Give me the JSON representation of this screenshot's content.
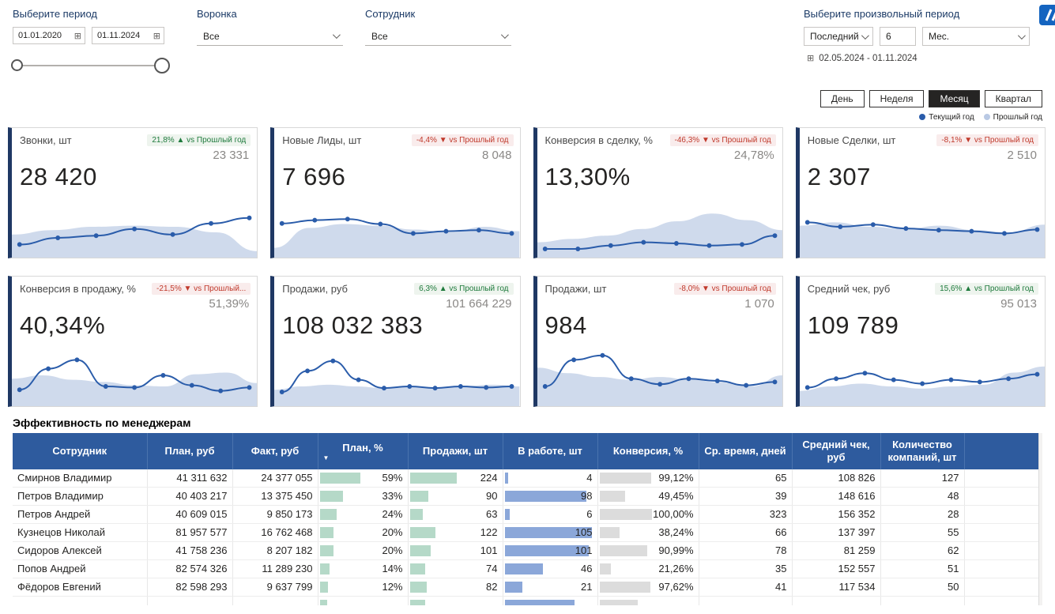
{
  "filters": {
    "period": {
      "label": "Выберите период",
      "start": "01.01.2020",
      "end": "01.11.2024"
    },
    "funnel": {
      "label": "Воронка",
      "value": "Все"
    },
    "employee": {
      "label": "Сотрудник",
      "value": "Все"
    },
    "custom_period": {
      "label": "Выберите произвольный период",
      "mode": "Последний",
      "count": "6",
      "unit": "Мес.",
      "range": "02.05.2024 - 01.11.2024"
    }
  },
  "granularity": {
    "buttons": [
      "День",
      "Неделя",
      "Месяц",
      "Квартал"
    ],
    "selected": "Месяц"
  },
  "legend": [
    {
      "label": "Текущий год",
      "color": "#2a5caa"
    },
    {
      "label": "Прошлый год",
      "color": "#b9c9e4"
    }
  ],
  "colors": {
    "current_line": "#2a5caa",
    "previous_area": "#cfdaec",
    "card_accent": "#1f3864",
    "table_header": "#2e5b9e",
    "bar_teal": "#b5d9c8",
    "bar_blue": "#8ba7d9",
    "bar_gray": "#dcdcdc",
    "badge_up": "#1e7a3c",
    "badge_down": "#c0392b"
  },
  "kpi_cards": [
    {
      "title": "Звонки, шт",
      "badge": "21,8% ▲ vs Прошлый год",
      "trend": "up",
      "previous": "23 331",
      "current": "28 420",
      "spark_current": [
        0.18,
        0.3,
        0.34,
        0.46,
        0.36,
        0.56,
        0.66
      ],
      "spark_previous": [
        0.36,
        0.44,
        0.5,
        0.52,
        0.5,
        0.4,
        0.06
      ]
    },
    {
      "title": "Новые Лиды, шт",
      "badge": "-4,4% ▼ vs Прошлый год",
      "trend": "down",
      "previous": "8 048",
      "current": "7 696",
      "spark_current": [
        0.56,
        0.62,
        0.64,
        0.55,
        0.38,
        0.42,
        0.44,
        0.38
      ],
      "spark_previous": [
        0.12,
        0.48,
        0.55,
        0.52,
        0.45,
        0.4,
        0.5,
        0.42
      ]
    },
    {
      "title": "Конверсия в сделку, %",
      "badge": "-46,3% ▼ vs Прошлый год",
      "trend": "down",
      "previous": "24,78%",
      "current": "13,30%",
      "spark_current": [
        0.1,
        0.1,
        0.16,
        0.22,
        0.2,
        0.16,
        0.18,
        0.34
      ],
      "spark_previous": [
        0.22,
        0.28,
        0.34,
        0.46,
        0.6,
        0.74,
        0.62,
        0.44
      ]
    },
    {
      "title": "Новые Сделки, шт",
      "badge": "-8,1% ▼ vs Прошлый год",
      "trend": "down",
      "previous": "2 510",
      "current": "2 307",
      "spark_current": [
        0.58,
        0.5,
        0.54,
        0.47,
        0.44,
        0.42,
        0.38,
        0.45
      ],
      "spark_previous": [
        0.52,
        0.58,
        0.5,
        0.46,
        0.52,
        0.44,
        0.4,
        0.54
      ]
    },
    {
      "title": "Конверсия в продажу, %",
      "badge": "-21,5% ▼ vs Прошлый...",
      "trend": "down",
      "previous": "51,39%",
      "current": "40,34%",
      "spark_current": [
        0.24,
        0.62,
        0.78,
        0.3,
        0.28,
        0.5,
        0.32,
        0.22,
        0.28
      ],
      "spark_previous": [
        0.44,
        0.5,
        0.42,
        0.38,
        0.32,
        0.3,
        0.52,
        0.55,
        0.36
      ]
    },
    {
      "title": "Продажи, руб",
      "badge": "6,3% ▲ vs Прошлый год",
      "trend": "up",
      "previous": "101 664 229",
      "current": "108 032 383",
      "spark_current": [
        0.2,
        0.58,
        0.76,
        0.42,
        0.27,
        0.3,
        0.27,
        0.3,
        0.28,
        0.3
      ],
      "spark_previous": [
        0.24,
        0.3,
        0.33,
        0.3,
        0.27,
        0.3,
        0.28,
        0.31,
        0.33,
        0.3
      ]
    },
    {
      "title": "Продажи, шт",
      "badge": "-8,0% ▼ vs Прошлый год",
      "trend": "down",
      "previous": "1 070",
      "current": "984",
      "spark_current": [
        0.3,
        0.78,
        0.86,
        0.44,
        0.34,
        0.44,
        0.4,
        0.32,
        0.38
      ],
      "spark_previous": [
        0.64,
        0.54,
        0.47,
        0.42,
        0.47,
        0.42,
        0.37,
        0.3,
        0.5
      ]
    },
    {
      "title": "Средний чек, руб",
      "badge": "15,6% ▲ vs Прошлый год",
      "trend": "up",
      "previous": "95 013",
      "current": "109 789",
      "spark_current": [
        0.28,
        0.44,
        0.54,
        0.42,
        0.35,
        0.42,
        0.38,
        0.44,
        0.52
      ],
      "spark_previous": [
        0.22,
        0.3,
        0.35,
        0.3,
        0.26,
        0.3,
        0.33,
        0.55,
        0.66
      ]
    }
  ],
  "table": {
    "title": "Эффективность по менеджерам",
    "columns": [
      "Сотрудник",
      "План, руб",
      "Факт, руб",
      "План, %",
      "Продажи, шт",
      "В работе, шт",
      "Конверсия, %",
      "Ср. время, дней",
      "Средний чек, руб",
      "Количество компаний, шт"
    ],
    "sort_column": "План, %",
    "rows": [
      {
        "name": "Смирнов Владимир",
        "plan_rub": "41 311 632",
        "fact_rub": "24 377 055",
        "plan_pct": "59%",
        "plan_pct_val": 59,
        "sales": "224",
        "sales_val": 224,
        "in_work": "4",
        "in_work_val": 4,
        "conv": "99,12%",
        "conv_val": 99.12,
        "avg_days": "65",
        "avg_check": "108 826",
        "companies": "127"
      },
      {
        "name": "Петров Владимир",
        "plan_rub": "40 403 217",
        "fact_rub": "13 375 450",
        "plan_pct": "33%",
        "plan_pct_val": 33,
        "sales": "90",
        "sales_val": 90,
        "in_work": "98",
        "in_work_val": 98,
        "conv": "49,45%",
        "conv_val": 49.45,
        "avg_days": "39",
        "avg_check": "148 616",
        "companies": "48"
      },
      {
        "name": "Петров Андрей",
        "plan_rub": "40 609 015",
        "fact_rub": "9 850 173",
        "plan_pct": "24%",
        "plan_pct_val": 24,
        "sales": "63",
        "sales_val": 63,
        "in_work": "6",
        "in_work_val": 6,
        "conv": "100,00%",
        "conv_val": 100,
        "avg_days": "323",
        "avg_check": "156 352",
        "companies": "28"
      },
      {
        "name": "Кузнецов Николай",
        "plan_rub": "81 957 577",
        "fact_rub": "16 762 468",
        "plan_pct": "20%",
        "plan_pct_val": 20,
        "sales": "122",
        "sales_val": 122,
        "in_work": "105",
        "in_work_val": 105,
        "conv": "38,24%",
        "conv_val": 38.24,
        "avg_days": "66",
        "avg_check": "137 397",
        "companies": "55"
      },
      {
        "name": "Сидоров Алексей",
        "plan_rub": "41 758 236",
        "fact_rub": "8 207 182",
        "plan_pct": "20%",
        "plan_pct_val": 20,
        "sales": "101",
        "sales_val": 101,
        "in_work": "101",
        "in_work_val": 101,
        "conv": "90,99%",
        "conv_val": 90.99,
        "avg_days": "78",
        "avg_check": "81 259",
        "companies": "62"
      },
      {
        "name": "Попов Андрей",
        "plan_rub": "82 574 326",
        "fact_rub": "11 289 230",
        "plan_pct": "14%",
        "plan_pct_val": 14,
        "sales": "74",
        "sales_val": 74,
        "in_work": "46",
        "in_work_val": 46,
        "conv": "21,26%",
        "conv_val": 21.26,
        "avg_days": "35",
        "avg_check": "152 557",
        "companies": "51"
      },
      {
        "name": "Фёдоров Евгений",
        "plan_rub": "82 598 293",
        "fact_rub": "9 637 799",
        "plan_pct": "12%",
        "plan_pct_val": 12,
        "sales": "82",
        "sales_val": 82,
        "in_work": "21",
        "in_work_val": 21,
        "conv": "97,62%",
        "conv_val": 97.62,
        "avg_days": "41",
        "avg_check": "117 534",
        "companies": "50"
      }
    ],
    "partial_row": {
      "name": "",
      "plan_rub": "",
      "fact_rub": "",
      "plan_pct": "",
      "plan_pct_val": 11,
      "sales": "",
      "sales_val": 75,
      "in_work": "",
      "in_work_val": 84,
      "conv": "",
      "conv_val": 73,
      "avg_days": "",
      "avg_check": "",
      "companies": ""
    }
  }
}
